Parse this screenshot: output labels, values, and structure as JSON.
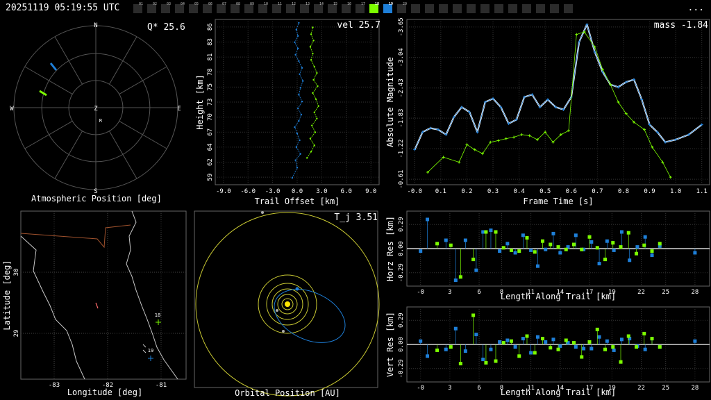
{
  "header": {
    "timestamp": "20251119 05:19:55 UTC",
    "menu": "...",
    "cameras": [
      "01",
      "02",
      "03",
      "04",
      "05",
      "06",
      "07",
      "08",
      "09",
      "10",
      "11",
      "12",
      "13",
      "14",
      "15",
      "16",
      "17",
      "18",
      "19",
      "20"
    ],
    "active_green": "18",
    "active_blue": "19"
  },
  "colors": {
    "camera_a": "#1e7fd8",
    "camera_b": "#7cfc00",
    "fit": "#ffffff",
    "grid": "#444444",
    "orbit": "#c8c832",
    "coast": "#c8c8c8"
  },
  "polar": {
    "readout": "Q* 25.6",
    "label": "Atmospheric Position [deg]",
    "directions": {
      "n": "N",
      "s": "S",
      "e": "E",
      "w": "W",
      "zenith": "Z",
      "radiant": "R"
    }
  },
  "height_plot": {
    "readout": "vel 25.7",
    "xlabel": "Trail Offset [km]",
    "ylabel": "Height [km]"
  },
  "mag_plot": {
    "readout": "mass -1.84",
    "xlabel": "Frame Time [s]",
    "ylabel": "Absolute Magnitude"
  },
  "map": {
    "xlabel": "Longitude [deg]",
    "ylabel": "Latitude [deg]",
    "station_labels": [
      "18",
      "19"
    ]
  },
  "orbit": {
    "readout": "T_j 3.51",
    "label": "Orbital Position [AU]"
  },
  "horz_res": {
    "xlabel": "Length Along Trail [km]",
    "ylabel": "Horz Res [km]"
  },
  "vert_res": {
    "xlabel": "Length Along Trail [km]",
    "ylabel": "Vert Res [km]"
  },
  "chart_data": [
    {
      "type": "scatter",
      "name": "height_vs_offset",
      "xlabel": "Trail Offset [km]",
      "ylabel": "Height [km]",
      "x_ticks": [
        "-9.0",
        "-6.0",
        "-3.0",
        "0.0",
        "3.0",
        "6.0",
        "9.0"
      ],
      "y_ticks": [
        "59",
        "62",
        "64",
        "67",
        "70",
        "73",
        "75",
        "78",
        "81",
        "83",
        "86"
      ],
      "xlim": [
        -10,
        10
      ],
      "ylim": [
        58,
        87
      ],
      "series": [
        {
          "color": "#1e7fd8",
          "points": [
            [
              -0.6,
              59.2
            ],
            [
              0,
              61
            ],
            [
              -0.2,
              62.3
            ],
            [
              0.4,
              63.4
            ],
            [
              -0.1,
              64.6
            ],
            [
              0.3,
              65.8
            ],
            [
              0,
              67
            ],
            [
              -0.3,
              68.1
            ],
            [
              0.2,
              69.2
            ],
            [
              0.5,
              70.3
            ],
            [
              0.1,
              71.4
            ],
            [
              0.6,
              72.6
            ],
            [
              0.2,
              73.8
            ],
            [
              0.4,
              75
            ],
            [
              0.7,
              76.2
            ],
            [
              0.3,
              77.4
            ],
            [
              0.6,
              78.5
            ],
            [
              0.2,
              79.7
            ],
            [
              -0.2,
              80.8
            ],
            [
              0.1,
              81.9
            ],
            [
              -0.3,
              83
            ],
            [
              0.1,
              84.1
            ],
            [
              -0.1,
              85.2
            ],
            [
              0.2,
              86.4
            ]
          ]
        },
        {
          "color": "#7cfc00",
          "points": [
            [
              1.2,
              62.7
            ],
            [
              1.7,
              63.8
            ],
            [
              2.1,
              64.9
            ],
            [
              1.6,
              66.1
            ],
            [
              2.2,
              67.2
            ],
            [
              1.8,
              68.4
            ],
            [
              2.4,
              69.6
            ],
            [
              2.1,
              70.7
            ],
            [
              2.6,
              71.8
            ],
            [
              2.3,
              73
            ],
            [
              1.9,
              74.1
            ],
            [
              2.5,
              75.3
            ],
            [
              2.0,
              76.4
            ],
            [
              2.4,
              77.6
            ],
            [
              2.1,
              78.7
            ],
            [
              1.7,
              79.9
            ],
            [
              1.9,
              81
            ],
            [
              1.6,
              82.2
            ],
            [
              2.0,
              83.3
            ],
            [
              1.7,
              84.4
            ],
            [
              1.9,
              85.6
            ]
          ]
        }
      ]
    },
    {
      "type": "line",
      "name": "light_curve",
      "xlabel": "Frame Time [s]",
      "ylabel": "Absolute Magnitude",
      "x_ticks": [
        "-0.0",
        "0.1",
        "0.2",
        "0.3",
        "0.4",
        "0.5",
        "0.6",
        "0.7",
        "0.8",
        "0.9",
        "1.0",
        "1.1"
      ],
      "y_ticks": [
        "-3.65",
        "-3.04",
        "-2.43",
        "-1.83",
        "-1.22",
        "-0.61"
      ],
      "xlim": [
        -0.03,
        1.13
      ],
      "ylim": [
        -0.5,
        -3.8
      ],
      "y_inverted": true,
      "series": [
        {
          "name": "fit",
          "color": "#ffffff",
          "x": [
            0,
            0.03,
            0.06,
            0.09,
            0.12,
            0.15,
            0.18,
            0.21,
            0.24,
            0.27,
            0.3,
            0.33,
            0.36,
            0.39,
            0.42,
            0.45,
            0.48,
            0.51,
            0.54,
            0.57,
            0.6,
            0.63,
            0.66,
            0.69,
            0.72,
            0.75,
            0.78,
            0.81,
            0.84,
            0.87,
            0.9,
            0.93,
            0.96,
            1.0,
            1.05,
            1.1
          ],
          "y": [
            -1.2,
            -1.55,
            -1.63,
            -1.6,
            -1.5,
            -1.85,
            -2.05,
            -1.95,
            -1.55,
            -2.15,
            -2.22,
            -2.05,
            -1.72,
            -1.8,
            -2.25,
            -2.3,
            -2.05,
            -2.2,
            -2.05,
            -2.0,
            -2.25,
            -3.35,
            -3.7,
            -3.15,
            -2.75,
            -2.5,
            -2.45,
            -2.55,
            -2.6,
            -2.2,
            -1.7,
            -1.55,
            -1.35,
            -1.4,
            -1.5,
            -1.7
          ]
        },
        {
          "name": "camera_a",
          "color": "#1e7fd8",
          "x": [
            0,
            0.03,
            0.06,
            0.09,
            0.12,
            0.15,
            0.18,
            0.21,
            0.24,
            0.27,
            0.3,
            0.33,
            0.36,
            0.39,
            0.42,
            0.45,
            0.48,
            0.51,
            0.54,
            0.57,
            0.6,
            0.63,
            0.66,
            0.69,
            0.72,
            0.75,
            0.78,
            0.81,
            0.84,
            0.87,
            0.9,
            0.93,
            0.96,
            1.0,
            1.05,
            1.1
          ],
          "y": [
            -1.2,
            -1.55,
            -1.63,
            -1.6,
            -1.5,
            -1.85,
            -2.05,
            -1.95,
            -1.55,
            -2.15,
            -2.22,
            -2.05,
            -1.72,
            -1.8,
            -2.25,
            -2.3,
            -2.05,
            -2.2,
            -2.05,
            -2.0,
            -2.25,
            -3.35,
            -3.7,
            -3.15,
            -2.75,
            -2.5,
            -2.45,
            -2.55,
            -2.6,
            -2.2,
            -1.7,
            -1.55,
            -1.35,
            -1.4,
            -1.5,
            -1.7
          ]
        },
        {
          "name": "camera_b",
          "color": "#7cfc00",
          "x": [
            0.05,
            0.11,
            0.17,
            0.2,
            0.23,
            0.26,
            0.29,
            0.32,
            0.35,
            0.38,
            0.41,
            0.44,
            0.47,
            0.5,
            0.53,
            0.56,
            0.59,
            0.62,
            0.65,
            0.69,
            0.72,
            0.75,
            0.78,
            0.81,
            0.84,
            0.88,
            0.91,
            0.95,
            0.98
          ],
          "y": [
            -0.75,
            -1.05,
            -0.95,
            -1.3,
            -1.2,
            -1.12,
            -1.35,
            -1.38,
            -1.42,
            -1.45,
            -1.5,
            -1.48,
            -1.4,
            -1.55,
            -1.35,
            -1.5,
            -1.58,
            -3.5,
            -3.55,
            -3.25,
            -2.8,
            -2.5,
            -2.15,
            -1.92,
            -1.75,
            -1.6,
            -1.25,
            -0.95,
            -0.65
          ]
        }
      ]
    },
    {
      "type": "scatter",
      "name": "horizontal_residuals",
      "xlabel": "Length Along Trail [km]",
      "ylabel": "Horz Res [km]",
      "x_ticks": [
        "-0",
        "3",
        "6",
        "8",
        "11",
        "14",
        "17",
        "19",
        "22",
        "25",
        "28"
      ],
      "y_ticks": [
        "0.29",
        "0.00",
        "-0.29"
      ],
      "xlim": [
        -1.5,
        29.5
      ],
      "ylim": [
        -0.45,
        0.45
      ],
      "series": [
        {
          "color": "#1e7fd8",
          "x": [
            -0.1,
            0.6,
            2.5,
            3.5,
            4.5,
            5.6,
            6.3,
            7.1,
            8.0,
            8.8,
            9.6,
            10.4,
            11.2,
            11.9,
            12.7,
            13.5,
            14.2,
            15.0,
            15.8,
            16.6,
            17.4,
            18.2,
            19.0,
            19.7,
            20.5,
            21.3,
            22.1,
            22.9,
            23.6,
            24.4,
            28.0
          ],
          "y": [
            -0.03,
            0.35,
            0.1,
            -0.38,
            0.1,
            -0.26,
            0.2,
            0.22,
            -0.03,
            0.06,
            -0.05,
            0.16,
            -0.02,
            -0.21,
            -0.01,
            0.18,
            -0.05,
            0.02,
            0.16,
            -0.01,
            0.08,
            -0.18,
            0.09,
            -0.02,
            0.2,
            -0.14,
            0.02,
            0.14,
            -0.08,
            0.03,
            -0.05
          ]
        },
        {
          "color": "#7cfc00",
          "x": [
            1.6,
            3.0,
            4.0,
            5.3,
            6.6,
            7.6,
            8.4,
            9.2,
            10.0,
            10.8,
            11.6,
            12.4,
            13.2,
            14.0,
            14.8,
            15.6,
            16.4,
            17.2,
            18.0,
            18.8,
            19.6,
            20.4,
            21.2,
            22.0,
            22.8,
            23.6,
            24.4
          ],
          "y": [
            0.06,
            0.04,
            -0.34,
            -0.13,
            0.2,
            0.2,
            0.01,
            -0.02,
            -0.03,
            0.13,
            -0.04,
            0.09,
            0.05,
            0.02,
            -0.01,
            0.05,
            -0.01,
            0.14,
            0.01,
            -0.13,
            0.07,
            0.02,
            0.19,
            -0.06,
            0.04,
            -0.03,
            0.06
          ]
        }
      ]
    },
    {
      "type": "scatter",
      "name": "vertical_residuals",
      "xlabel": "Length Along Trail [km]",
      "ylabel": "Vert Res [km]",
      "x_ticks": [
        "-0",
        "3",
        "6",
        "8",
        "11",
        "14",
        "17",
        "19",
        "22",
        "25",
        "28"
      ],
      "y_ticks": [
        "0.29",
        "0.00",
        "-0.29"
      ],
      "xlim": [
        -1.5,
        29.5
      ],
      "ylim": [
        -0.45,
        0.45
      ],
      "series": [
        {
          "color": "#1e7fd8",
          "x": [
            -0.1,
            0.6,
            2.5,
            3.5,
            4.5,
            5.6,
            6.3,
            7.1,
            8.0,
            8.8,
            9.6,
            10.4,
            11.2,
            11.9,
            12.7,
            13.5,
            14.2,
            15.0,
            15.8,
            16.6,
            17.4,
            18.2,
            19.0,
            19.7,
            20.5,
            21.3,
            22.1,
            22.9,
            23.6,
            24.4,
            28.0
          ],
          "y": [
            0.04,
            -0.14,
            -0.06,
            0.19,
            -0.08,
            0.12,
            -0.18,
            -0.06,
            0.03,
            0.05,
            -0.03,
            0.07,
            -0.1,
            0.09,
            0.03,
            0.06,
            -0.02,
            0.02,
            -0.03,
            -0.05,
            -0.05,
            0.09,
            0.04,
            -0.07,
            0.06,
            0.07,
            -0.02,
            -0.06,
            0.07,
            -0.03,
            0.04
          ]
        },
        {
          "color": "#7cfc00",
          "x": [
            1.6,
            3.0,
            4.0,
            5.3,
            6.6,
            7.6,
            8.4,
            9.2,
            10.0,
            10.8,
            11.6,
            12.4,
            13.2,
            14.0,
            14.8,
            15.6,
            16.4,
            17.2,
            18.0,
            18.8,
            19.6,
            20.4,
            21.2,
            22.0,
            22.8,
            23.6,
            24.4
          ],
          "y": [
            -0.07,
            -0.03,
            -0.23,
            0.35,
            -0.22,
            -0.2,
            0.02,
            0.04,
            -0.14,
            0.1,
            -0.1,
            0.07,
            -0.04,
            -0.06,
            0.05,
            0.02,
            -0.15,
            0.03,
            0.18,
            -0.06,
            -0.03,
            -0.21,
            0.1,
            -0.03,
            0.13,
            0.07,
            -0.03
          ]
        }
      ]
    }
  ]
}
